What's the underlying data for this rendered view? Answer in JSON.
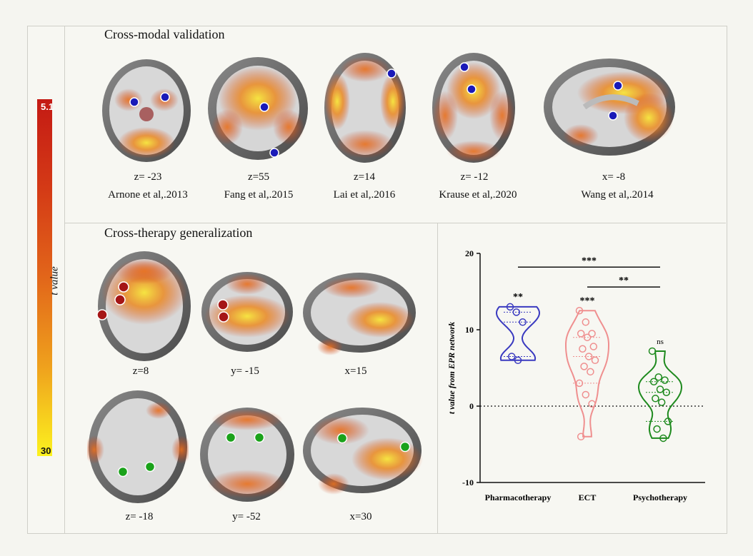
{
  "colorbar": {
    "max_label": "5.1",
    "min_label": "30",
    "title": "t value"
  },
  "top_section": {
    "title": "Cross-modal validation",
    "slices": [
      {
        "coord": "z= -23",
        "citation": "Arnone et al,.2013"
      },
      {
        "coord": "z=55",
        "citation": "Fang et al,.2015"
      },
      {
        "coord": "z=14",
        "citation": "Lai et al,.2016"
      },
      {
        "coord": "z= -12",
        "citation": "Krause et al,.2020"
      },
      {
        "coord": "x= -8",
        "citation": "Wang et al,.2014"
      }
    ]
  },
  "bottom_section": {
    "title": "Cross-therapy generalization",
    "row1": [
      {
        "coord": "z=8"
      },
      {
        "coord": "y= -15"
      },
      {
        "coord": "x=15"
      }
    ],
    "row2": [
      {
        "coord": "z= -18"
      },
      {
        "coord": "y= -52"
      },
      {
        "coord": "x=30"
      }
    ]
  },
  "colors": {
    "marker_blue": "#1a1ab8",
    "marker_red": "#a51616",
    "marker_green": "#1aa21a",
    "pharma": "#3a3ac0",
    "ect": "#ef8f8f",
    "psycho": "#1e8a1e"
  },
  "chart_data": {
    "type": "violin",
    "ylabel": "t value from EPR network",
    "ylim": [
      -10,
      20
    ],
    "yticks": [
      -10,
      0,
      10,
      20
    ],
    "categories": [
      "Pharmacotherapy",
      "ECT",
      "Psychotherapy"
    ],
    "series": [
      {
        "name": "Pharmacotherapy",
        "points": [
          13,
          12.3,
          11,
          6.5,
          6
        ],
        "significance": "**"
      },
      {
        "name": "ECT",
        "points": [
          12.5,
          11,
          9.5,
          9.5,
          9,
          7.8,
          7.5,
          6.5,
          6,
          5.2,
          4.5,
          3,
          1.5,
          0.3,
          -4
        ],
        "significance": "***"
      },
      {
        "name": "Psychotherapy",
        "points": [
          7.2,
          3.8,
          3.4,
          3.2,
          2.2,
          1.8,
          1,
          0.5,
          -2,
          -3,
          -4.2
        ],
        "significance": "ns"
      }
    ],
    "comparisons": [
      {
        "from": "Pharmacotherapy",
        "to": "Psychotherapy",
        "label": "***"
      },
      {
        "from": "ECT",
        "to": "Psychotherapy",
        "label": "**"
      }
    ]
  }
}
